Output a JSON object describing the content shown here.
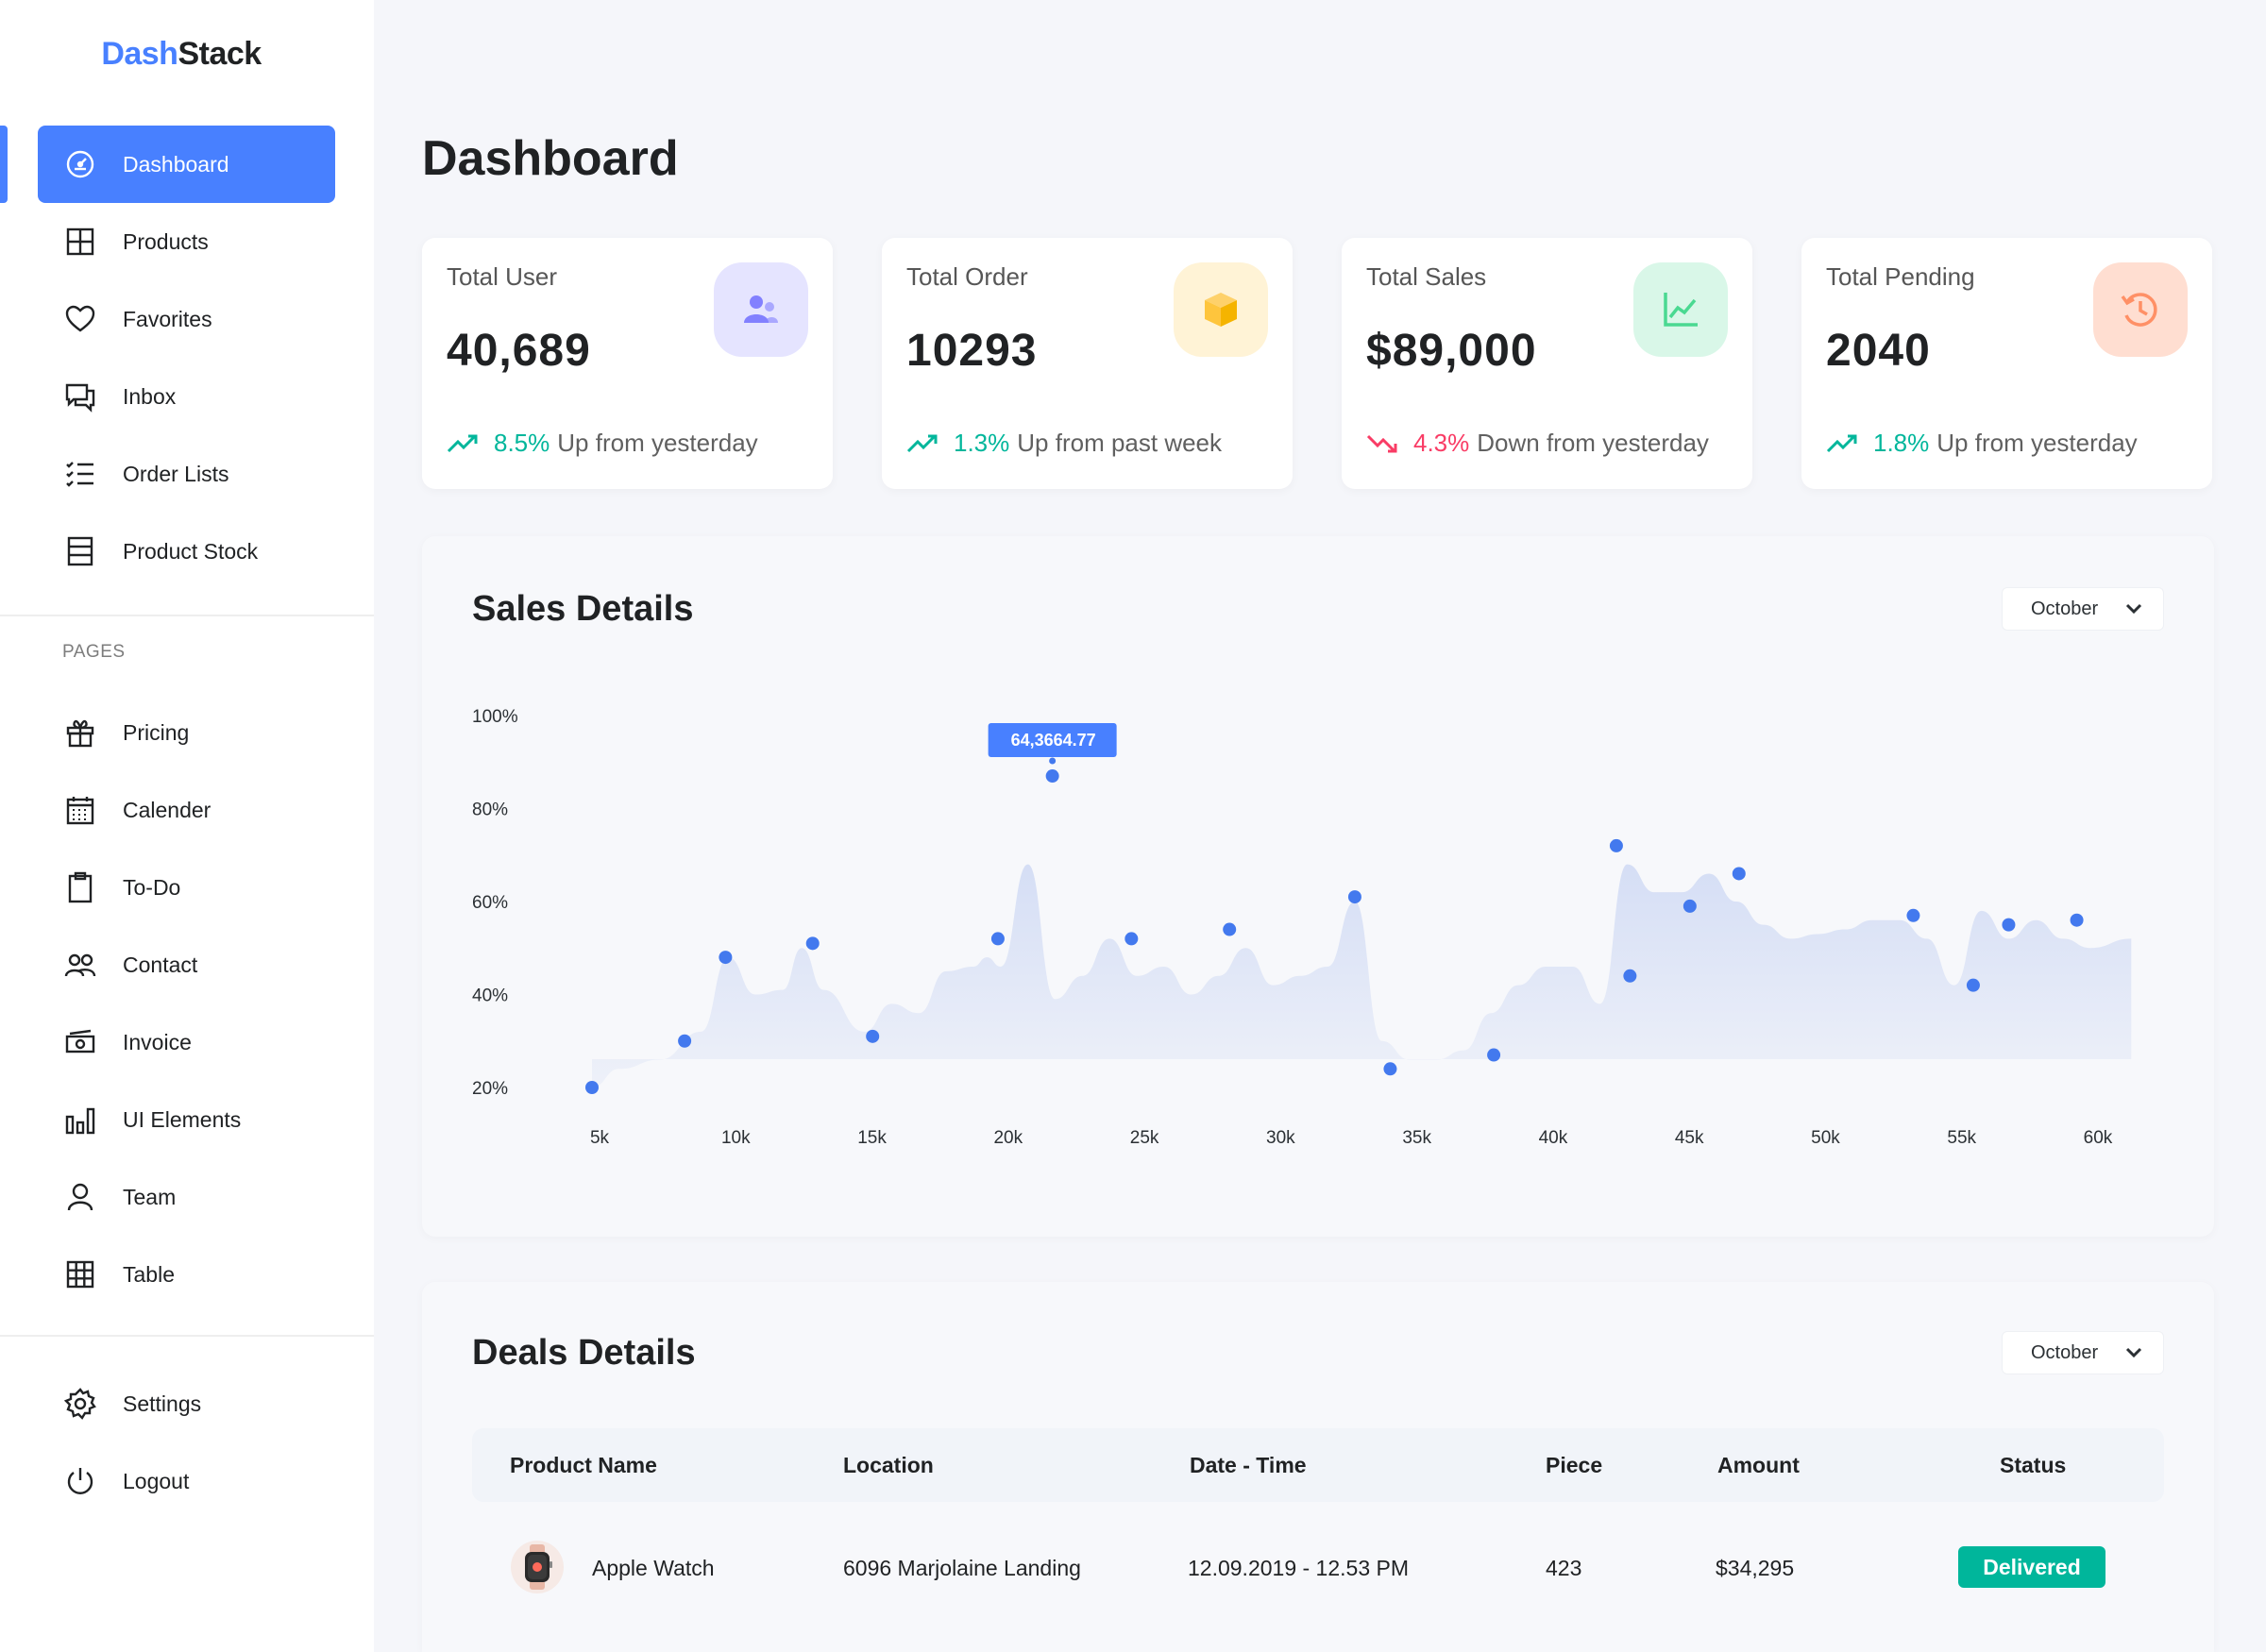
{
  "brand": {
    "part1": "Dash",
    "part2": "Stack"
  },
  "sidebar": {
    "main_items": [
      {
        "label": "Dashboard",
        "icon": "dashboard-gauge-icon",
        "active": true
      },
      {
        "label": "Products",
        "icon": "grid-icon"
      },
      {
        "label": "Favorites",
        "icon": "heart-icon"
      },
      {
        "label": "Inbox",
        "icon": "chat-icon"
      },
      {
        "label": "Order Lists",
        "icon": "checklist-icon"
      },
      {
        "label": "Product Stock",
        "icon": "stock-icon"
      }
    ],
    "pages_label": "PAGES",
    "page_items": [
      {
        "label": "Pricing",
        "icon": "gift-icon"
      },
      {
        "label": "Calender",
        "icon": "calendar-icon"
      },
      {
        "label": "To-Do",
        "icon": "clipboard-icon"
      },
      {
        "label": "Contact",
        "icon": "contacts-icon"
      },
      {
        "label": "Invoice",
        "icon": "invoice-icon"
      },
      {
        "label": "UI Elements",
        "icon": "bar-chart-icon"
      },
      {
        "label": "Team",
        "icon": "user-icon"
      },
      {
        "label": "Table",
        "icon": "table-icon"
      }
    ],
    "bottom_items": [
      {
        "label": "Settings",
        "icon": "gear-icon"
      },
      {
        "label": "Logout",
        "icon": "power-icon"
      }
    ]
  },
  "page_title": "Dashboard",
  "stats": [
    {
      "label": "Total User",
      "value": "40,689",
      "pct": "8.5%",
      "text": "Up from yesterday",
      "direction": "up",
      "icon": "users-icon",
      "badge_color": "#e5e4ff",
      "icon_color": "#8280ff"
    },
    {
      "label": "Total Order",
      "value": "10293",
      "pct": "1.3%",
      "text": "Up from past week",
      "direction": "up",
      "icon": "box-icon",
      "badge_color": "#fff3d6",
      "icon_color": "#fec53d"
    },
    {
      "label": "Total Sales",
      "value": "$89,000",
      "pct": "4.3%",
      "text": "Down from yesterday",
      "direction": "down",
      "icon": "line-chart-icon",
      "badge_color": "#d9f7e8",
      "icon_color": "#4ad991"
    },
    {
      "label": "Total Pending",
      "value": "2040",
      "pct": "1.8%",
      "text": "Up from yesterday",
      "direction": "up",
      "icon": "history-icon",
      "badge_color": "#ffded1",
      "icon_color": "#ff9066"
    }
  ],
  "sales": {
    "title": "Sales Details",
    "month": "October",
    "tooltip": "64,3664.77"
  },
  "chart_data": {
    "type": "area",
    "title": "Sales Details",
    "xlabel": "",
    "ylabel": "",
    "x_ticks": [
      "5k",
      "10k",
      "15k",
      "20k",
      "25k",
      "30k",
      "35k",
      "40k",
      "45k",
      "50k",
      "55k",
      "60k"
    ],
    "y_ticks": [
      "100%",
      "80%",
      "60%",
      "40%",
      "20%"
    ],
    "xlim": [
      5,
      60
    ],
    "ylim": [
      20,
      100
    ],
    "grid": false,
    "fill_color": "#e0e7f6",
    "point_color": "#4379ee",
    "area": {
      "x": [
        5,
        6,
        7.5,
        9,
        10,
        11,
        12,
        12.7,
        13.5,
        15,
        16,
        17,
        18,
        19,
        19.5,
        20,
        21,
        22,
        23,
        24,
        25,
        26,
        27,
        28,
        29,
        30,
        31,
        32,
        33,
        34,
        35,
        36,
        37,
        38,
        39,
        40,
        41,
        42,
        43,
        44,
        45,
        46,
        47,
        48,
        49,
        50,
        51,
        52,
        53,
        54,
        55,
        56,
        57,
        58,
        59,
        60,
        61.5
      ],
      "y": [
        20,
        24,
        26,
        32,
        48,
        40,
        41,
        50,
        41,
        32,
        38,
        36,
        45,
        46,
        48,
        46,
        68,
        39,
        44,
        52,
        44,
        46,
        40,
        44,
        50,
        42,
        44,
        46,
        60,
        30,
        26,
        26,
        28,
        36,
        42,
        46,
        46,
        38,
        68,
        62,
        62,
        66,
        60,
        55,
        52,
        53,
        54,
        56,
        56,
        52,
        42,
        58,
        52,
        56,
        52,
        50,
        52
      ]
    },
    "points": {
      "x": [
        5,
        8.4,
        9.9,
        13.1,
        15.3,
        19.9,
        21.9,
        24.8,
        28.4,
        33,
        34.3,
        38.1,
        42.6,
        43.1,
        45.3,
        47.1,
        53.5,
        55.7,
        57,
        59.5
      ],
      "y": [
        20,
        30,
        48,
        51,
        31,
        52,
        87,
        52,
        54,
        61,
        24,
        27,
        72,
        44,
        59,
        66,
        57,
        42,
        55,
        56
      ]
    },
    "highlight": {
      "x": 21.9,
      "y": 87,
      "label": "64,3664.77"
    }
  },
  "deals": {
    "title": "Deals Details",
    "month": "October",
    "columns": [
      "Product Name",
      "Location",
      "Date - Time",
      "Piece",
      "Amount",
      "Status"
    ],
    "rows": [
      {
        "product": "Apple Watch",
        "location": "6096 Marjolaine Landing",
        "datetime": "12.09.2019 - 12.53 PM",
        "piece": "423",
        "amount": "$34,295",
        "status": "Delivered"
      }
    ]
  }
}
